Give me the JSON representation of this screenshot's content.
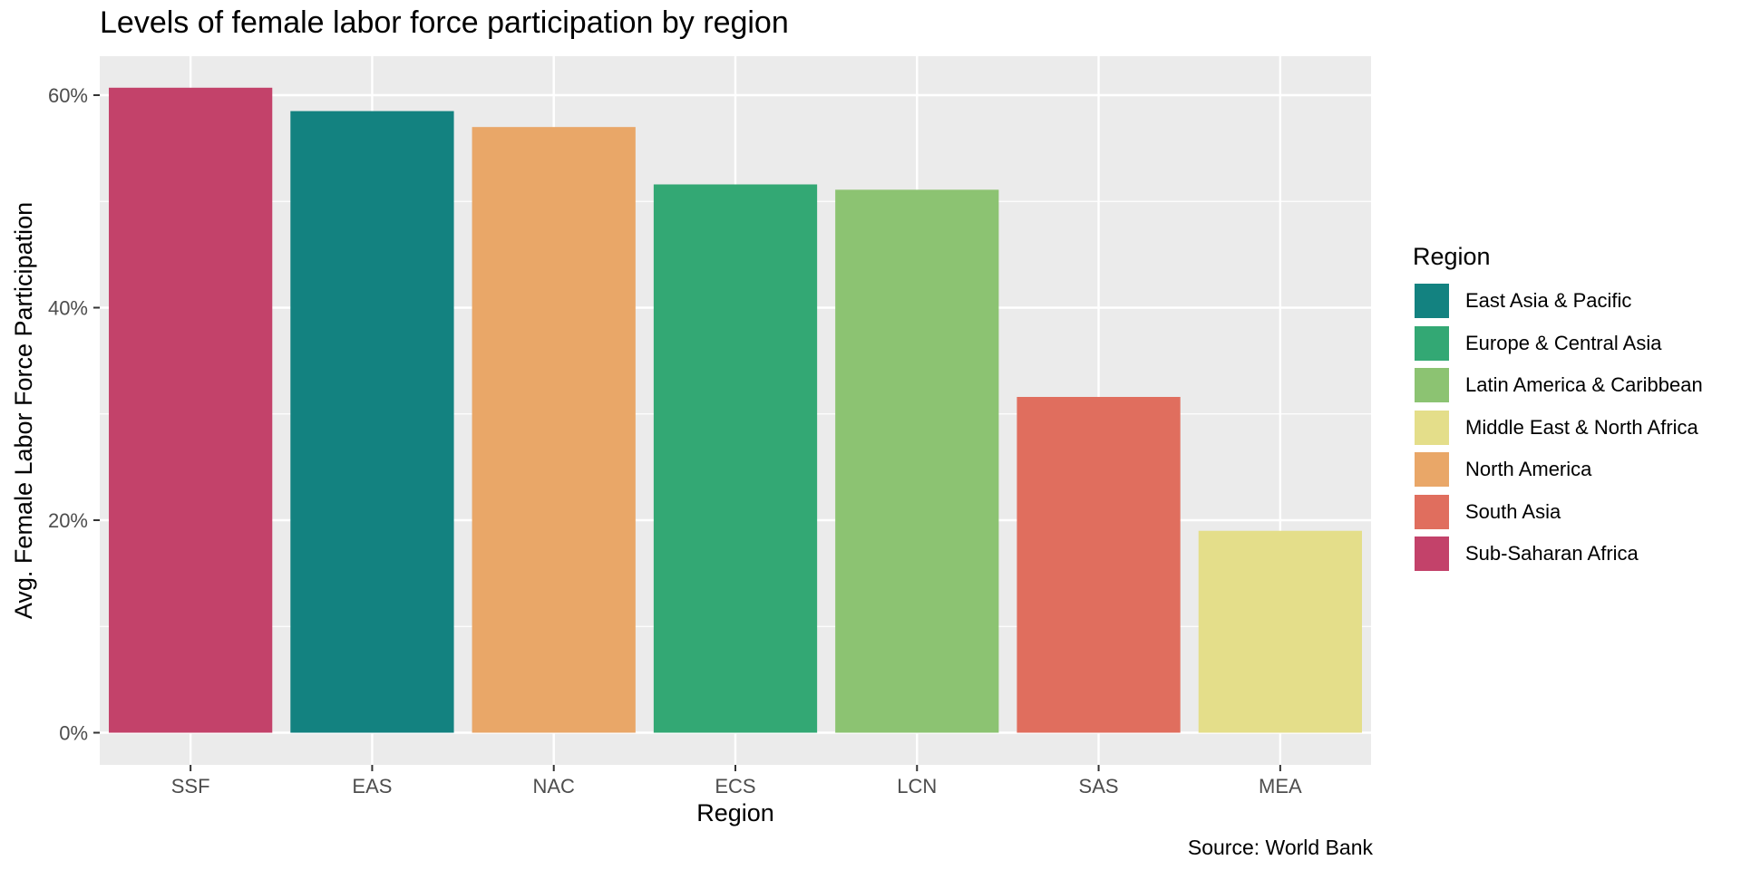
{
  "chart_data": {
    "type": "bar",
    "title": "Levels of female labor force participation by region",
    "xlabel": "Region",
    "ylabel": "Avg. Female Labor Force Participation",
    "caption": "Source: World Bank",
    "ylim": [
      0,
      0.64
    ],
    "yticks": [
      0,
      0.2,
      0.4,
      0.6
    ],
    "ytick_labels": [
      "0%",
      "20%",
      "40%",
      "60%"
    ],
    "grid": true,
    "categories": [
      "SSF",
      "EAS",
      "NAC",
      "ECS",
      "LCN",
      "SAS",
      "MEA"
    ],
    "values": [
      0.607,
      0.585,
      0.57,
      0.516,
      0.511,
      0.316,
      0.19
    ],
    "bar_regions": [
      "Sub-Saharan Africa",
      "East Asia & Pacific",
      "North America",
      "Europe & Central Asia",
      "Latin America & Caribbean",
      "South Asia",
      "Middle East & North Africa"
    ],
    "legend_title": "Region",
    "legend_position": "right",
    "legend": [
      {
        "label": "East Asia & Pacific",
        "color": "#138280"
      },
      {
        "label": "Europe & Central Asia",
        "color": "#33a874"
      },
      {
        "label": "Latin America & Caribbean",
        "color": "#8cc372"
      },
      {
        "label": "Middle East & North Africa",
        "color": "#e4de8a"
      },
      {
        "label": "North America",
        "color": "#e9a768"
      },
      {
        "label": "South Asia",
        "color": "#e06e5e"
      },
      {
        "label": "Sub-Saharan Africa",
        "color": "#c3426a"
      }
    ]
  }
}
